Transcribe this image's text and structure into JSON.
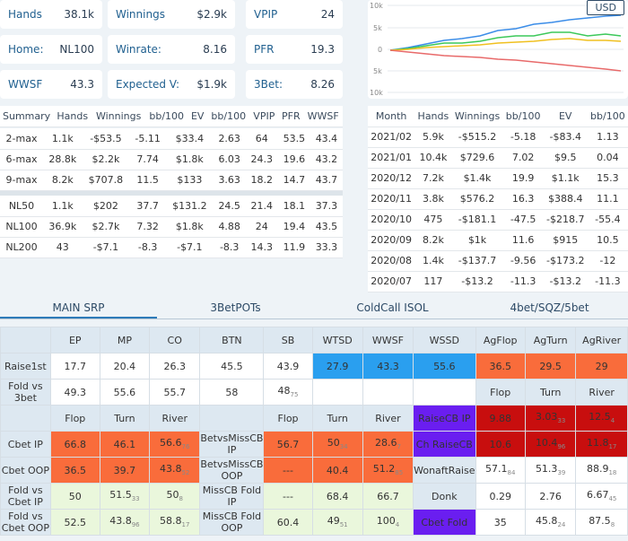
{
  "stats": [
    {
      "label": "Hands",
      "value": "38.1k"
    },
    {
      "label": "Winnings",
      "value": "$2.9k"
    },
    {
      "label": "VPIP",
      "value": "24"
    },
    {
      "label": "Home:",
      "value": "NL100"
    },
    {
      "label": "Winrate:",
      "value": "8.16"
    },
    {
      "label": "PFR",
      "value": "19.3"
    },
    {
      "label": "WWSF",
      "value": "43.3"
    },
    {
      "label": "Expected V:",
      "value": "$1.9k"
    },
    {
      "label": "3Bet:",
      "value": "8.26"
    }
  ],
  "currency": "USD",
  "graph": {
    "y_ticks": [
      "10k",
      "5k",
      "0",
      "5k",
      "10k"
    ],
    "colors": {
      "blue": "#3b8de8",
      "green": "#3cc85a",
      "yellow": "#f0c020",
      "red": "#e86a6a"
    }
  },
  "summary": {
    "headers": [
      "Summary",
      "Hands",
      "Winnings",
      "bb/100",
      "EV",
      "bb/100",
      "VPIP",
      "PFR",
      "WWSF"
    ],
    "rows": [
      [
        "2-max",
        "1.1k",
        "-$53.5",
        "-5.11",
        "$33.4",
        "2.63",
        "64",
        "53.5",
        "43.4"
      ],
      [
        "6-max",
        "28.8k",
        "$2.2k",
        "7.74",
        "$1.8k",
        "6.03",
        "24.3",
        "19.6",
        "43.2"
      ],
      [
        "9-max",
        "8.2k",
        "$707.8",
        "11.5",
        "$133",
        "3.63",
        "18.2",
        "14.7",
        "43.7"
      ]
    ],
    "rows2": [
      [
        "NL50",
        "1.1k",
        "$202",
        "37.7",
        "$131.2",
        "24.5",
        "21.4",
        "18.1",
        "37.3"
      ],
      [
        "NL100",
        "36.9k",
        "$2.7k",
        "7.32",
        "$1.8k",
        "4.88",
        "24",
        "19.4",
        "43.5"
      ],
      [
        "NL200",
        "43",
        "-$7.1",
        "-8.3",
        "-$7.1",
        "-8.3",
        "14.3",
        "11.9",
        "33.3"
      ]
    ]
  },
  "month": {
    "headers": [
      "Month",
      "Hands",
      "Winnings",
      "bb/100",
      "EV",
      "bb/100"
    ],
    "rows": [
      [
        "2021/02",
        "5.9k",
        "-$515.2",
        "-5.18",
        "-$83.4",
        "1.13"
      ],
      [
        "2021/01",
        "10.4k",
        "$729.6",
        "7.02",
        "$9.5",
        "0.04"
      ],
      [
        "2020/12",
        "7.2k",
        "$1.4k",
        "19.9",
        "$1.1k",
        "15.3"
      ],
      [
        "2020/11",
        "3.8k",
        "$576.2",
        "16.3",
        "$388.4",
        "11.1"
      ],
      [
        "2020/10",
        "475",
        "-$181.1",
        "-47.5",
        "-$218.7",
        "-55.4"
      ],
      [
        "2020/09",
        "8.2k",
        "$1k",
        "11.6",
        "$915",
        "10.5"
      ],
      [
        "2020/08",
        "1.4k",
        "-$137.7",
        "-9.56",
        "-$173.2",
        "-12"
      ],
      [
        "2020/07",
        "117",
        "-$13.2",
        "-11.3",
        "-$13.2",
        "-11.3"
      ]
    ]
  },
  "tabs": [
    "MAIN SRP",
    "3BetPOTs",
    "ColdCall ISOL",
    "4bet/SQZ/5bet"
  ],
  "pre": {
    "headers": [
      "EP",
      "MP",
      "CO",
      "BTN",
      "SB",
      "WTSD",
      "WWSF",
      "WSSD",
      "AgFlop",
      "AgTurn",
      "AgRiver"
    ],
    "raise_label": "Raise1st",
    "raise": [
      "17.7",
      "20.4",
      "26.3",
      "45.5",
      "43.9",
      "27.9",
      "43.3",
      "55.6",
      "36.5",
      "29.5",
      "29"
    ],
    "fold_label": "Fold vs 3bet",
    "fold": [
      "49.3",
      "55.6",
      "55.7",
      "58",
      "48",
      "",
      "",
      "",
      "Flop",
      "Turn",
      "River"
    ],
    "fold_sub_sb": "75"
  },
  "post": {
    "headers": [
      "Flop",
      "Turn",
      "River",
      "Flop",
      "Turn",
      "River"
    ],
    "rows": [
      {
        "l1": "Cbet IP",
        "v1": [
          "66.8",
          "46.1",
          "56.6"
        ],
        "s1": [
          "",
          "",
          "76"
        ],
        "l2": "BetvsMissCB IP",
        "v2": [
          "56.7",
          "50",
          "28.6"
        ],
        "s2": [
          "",
          "34",
          "7"
        ],
        "l3": "RaiseCB IP",
        "v3": [
          "9.88",
          "3.03",
          "12.5"
        ],
        "s3": [
          "",
          "33",
          "4"
        ]
      },
      {
        "l1": "Cbet OOP",
        "v1": [
          "36.5",
          "39.7",
          "43.8"
        ],
        "s1": [
          "",
          "",
          "52"
        ],
        "l2": "BetvsMissCB OOP",
        "v2": [
          "---",
          "40.4",
          "51.2"
        ],
        "s2": [
          "",
          "",
          "85"
        ],
        "l3": "Ch RaiseCB",
        "v3": [
          "10.6",
          "10.4",
          "11.8"
        ],
        "s3": [
          "",
          "96",
          "17"
        ]
      },
      {
        "l1": "Fold vs Cbet IP",
        "v1": [
          "50",
          "51.5",
          "50"
        ],
        "s1": [
          "",
          "33",
          "8"
        ],
        "l2": "MissCB Fold IP",
        "v2": [
          "---",
          "68.4",
          "66.7"
        ],
        "s2": [
          "",
          "",
          ""
        ],
        "l3": "WonaftRaise",
        "v3": [
          "57.1",
          "51.3",
          "88.9"
        ],
        "s3": [
          "84",
          "39",
          "18"
        ]
      },
      {
        "l1": "Fold vs Cbet OOP",
        "v1": [
          "52.5",
          "43.8",
          "58.8"
        ],
        "s1": [
          "",
          "96",
          "17"
        ],
        "l2": "MissCB Fold OOP",
        "v2": [
          "60.4",
          "49",
          "100"
        ],
        "s2": [
          "",
          "51",
          "4"
        ],
        "l3": "Donk",
        "v3": [
          "0.29",
          "2.76",
          "6.67"
        ],
        "s3": [
          "",
          "",
          "45"
        ]
      },
      {
        "l1": "",
        "v1": [],
        "s1": [],
        "l2": "",
        "v2": [],
        "s2": [],
        "l3": "Cbet Fold",
        "v3": [
          "35",
          "45.8",
          "87.5"
        ],
        "s3": [
          "",
          "24",
          "8"
        ]
      }
    ]
  }
}
